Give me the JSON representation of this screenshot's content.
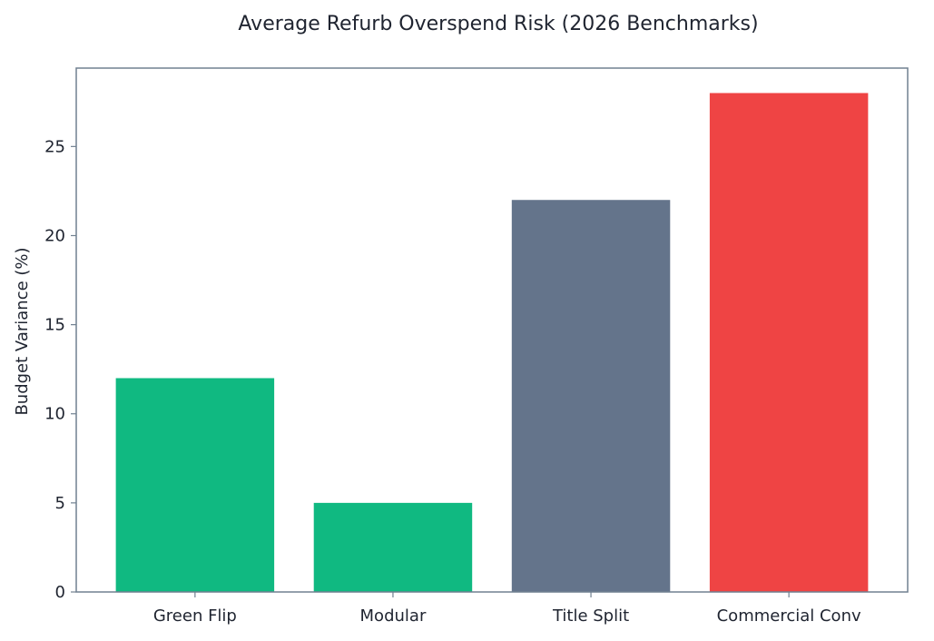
{
  "chart_data": {
    "type": "bar",
    "title": "Average Refurb Overspend Risk (2026 Benchmarks)",
    "xlabel": "",
    "ylabel": "Budget Variance (%)",
    "categories": [
      "Green Flip",
      "Modular",
      "Title Split",
      "Commercial Conv"
    ],
    "values": [
      12,
      5,
      22,
      28
    ],
    "bar_colors": [
      "#10b981",
      "#10b981",
      "#64748b",
      "#ef4444"
    ],
    "ylim": [
      0,
      29.4
    ],
    "yticks": [
      0,
      5,
      10,
      15,
      20,
      25
    ],
    "grid": false,
    "legend": "none"
  }
}
